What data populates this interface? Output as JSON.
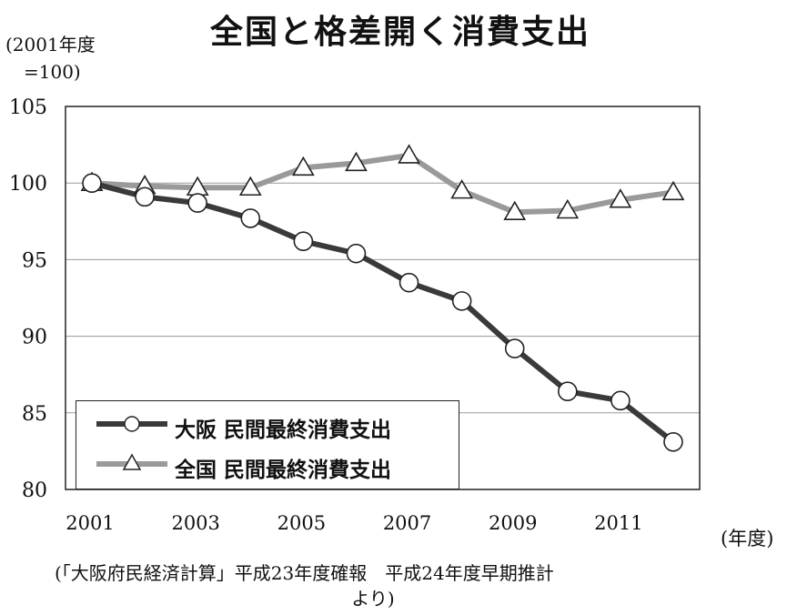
{
  "title": "全国と格差開く消費支出",
  "y_unit_line1": "(2001年度",
  "y_unit_line2": "=100)",
  "x_unit": "(年度)",
  "source_line1": "(「大阪府民経済計算」平成23年度確報　平成24年度早期推計",
  "source_line2": "より)",
  "chart_data": {
    "type": "line",
    "x": [
      2001,
      2002,
      2003,
      2004,
      2005,
      2006,
      2007,
      2008,
      2009,
      2010,
      2011,
      2012
    ],
    "x_tick_labels": [
      "2001",
      "2003",
      "2005",
      "2007",
      "2009",
      "2011"
    ],
    "x_ticks": [
      2001,
      2003,
      2005,
      2007,
      2009,
      2011
    ],
    "ylim": [
      80,
      105
    ],
    "y_ticks": [
      80,
      85,
      90,
      95,
      100,
      105
    ],
    "grid": true,
    "legend_position": "bottom-left",
    "series": [
      {
        "name": "大阪 民間最終消費支出",
        "marker": "circle",
        "color": "#3a3a3a",
        "values": [
          100,
          99.1,
          98.7,
          97.7,
          96.2,
          95.4,
          93.5,
          92.3,
          89.2,
          86.4,
          85.8,
          83.1
        ]
      },
      {
        "name": "全国 民間最終消費支出",
        "marker": "triangle",
        "color": "#9a9a9a",
        "values": [
          100,
          99.8,
          99.7,
          99.7,
          101.0,
          101.3,
          101.8,
          99.5,
          98.1,
          98.2,
          98.9,
          99.4
        ]
      }
    ]
  }
}
